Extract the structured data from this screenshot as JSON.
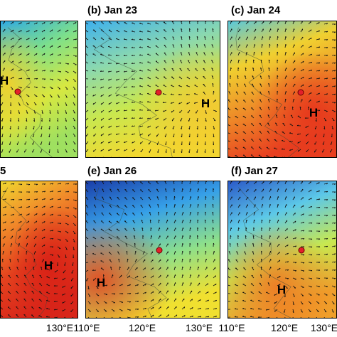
{
  "panels": [
    {
      "id": "a",
      "label": "",
      "bg": [
        "#2ca8e8",
        "#7ee08a",
        "#d8e840",
        "#9fe060"
      ],
      "hot": "#f4d02a",
      "high_label": "H"
    },
    {
      "id": "b",
      "label": "(b) Jan 23",
      "bg": [
        "#3db0ee",
        "#8ad8b0",
        "#c8e850",
        "#f2d830"
      ],
      "hot": "#f4c830",
      "high_label": "H"
    },
    {
      "id": "c",
      "label": "(c) Jan 24",
      "bg": [
        "#56c8e0",
        "#f0d030",
        "#ee8a28",
        "#e84020"
      ],
      "hot": "#e6361c",
      "high_label": "H"
    },
    {
      "id": "d",
      "label": "5",
      "bg": [
        "#f0d830",
        "#f08a2a",
        "#e4421e",
        "#d8261a"
      ],
      "hot": "#d82016",
      "high_label": "H"
    },
    {
      "id": "e",
      "label": "(e) Jan 26",
      "bg": [
        "#1a3ca8",
        "#36a0e8",
        "#8ee08a",
        "#f0e030"
      ],
      "hot": "#e64a20",
      "high_label": "H"
    },
    {
      "id": "f",
      "label": "(f) Jan 27",
      "bg": [
        "#2a58c8",
        "#5cc8e8",
        "#c8e850",
        "#f0a02a"
      ],
      "hot": "#ee7a24",
      "high_label": "H"
    }
  ],
  "axis": {
    "ticks_d": [
      "130°E"
    ],
    "ticks_e": [
      "110°E",
      "120°E",
      "130°E"
    ],
    "ticks_f": [
      "110°E",
      "120°E",
      "130°E"
    ]
  },
  "marker_color": "#e3202a"
}
